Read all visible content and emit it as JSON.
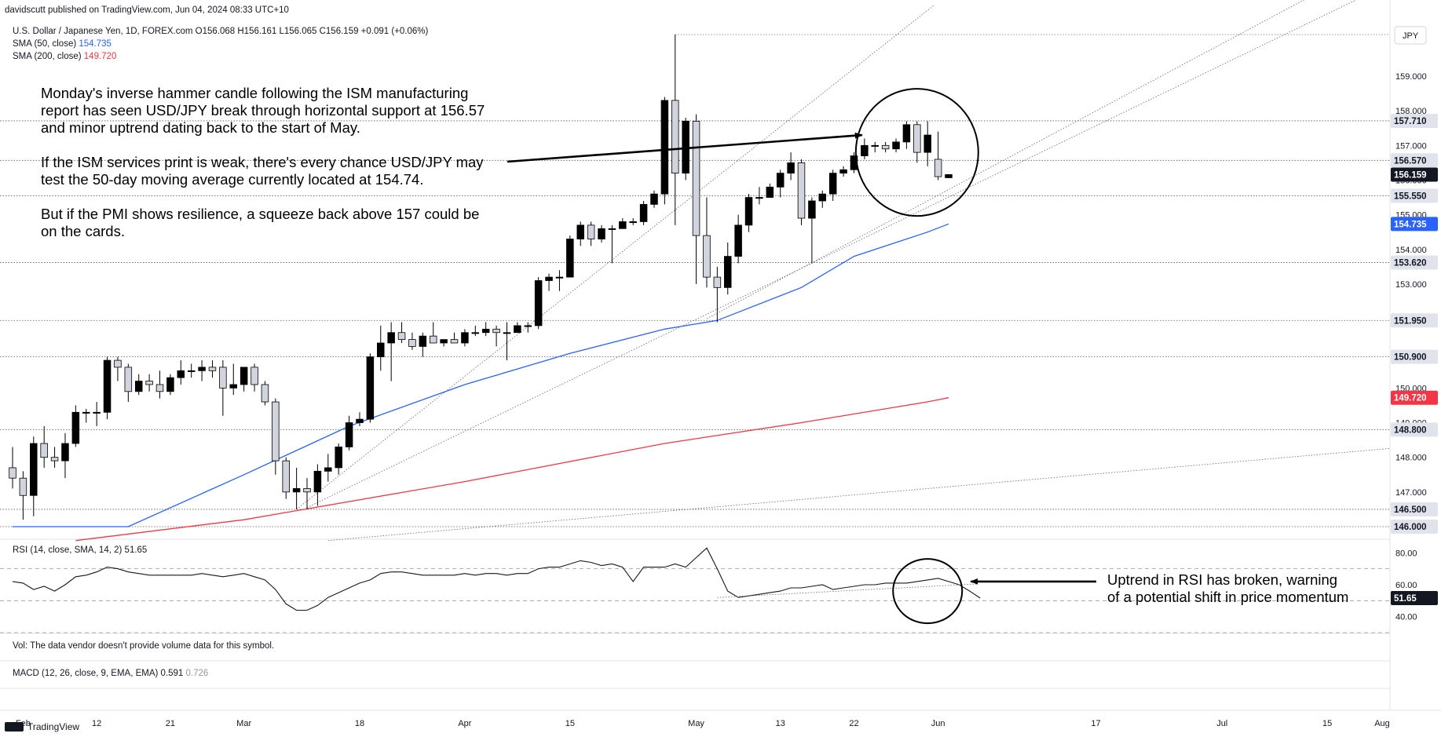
{
  "header": {
    "published": "davidscutt published on TradingView.com, Jun 04, 2024 08:33 UTC+10",
    "symbol_line": "U.S. Dollar / Japanese Yen, 1D, FOREX.com",
    "ohlc": "O156.068 H156.161 L156.065 C156.159 +0.091 (+0.06%)",
    "sma50_label": "SMA (50, close)",
    "sma50_value": "154.735",
    "sma200_label": "SMA (200, close)",
    "sma200_value": "149.720",
    "currency": "JPY"
  },
  "annotation_main": [
    "Monday's inverse hammer candle following the ISM manufacturing",
    "report has seen USD/JPY break through horizontal support at 156.57",
    "and minor uptrend dating back to the start of May.",
    "",
    "If the ISM services print is weak, there's every chance USD/JPY may",
    "test the 50-day moving average currently located at 154.74.",
    "",
    "But if the PMI shows resilience, a squeeze back above 157 could be",
    "on the cards."
  ],
  "annotation_rsi": [
    "Uptrend in RSI has broken, warning",
    "of a potential shift in price momentum"
  ],
  "rsi_header": "RSI (14, close, SMA, 14, 2)",
  "rsi_value": "51.65",
  "vol_text": "Vol: The data vendor doesn't provide volume data for this symbol.",
  "macd_header": "MACD (12, 26, close, 9, EMA, EMA)",
  "macd_value": "0.591",
  "macd_signal": "0.726",
  "footer": {
    "brand": "TradingView"
  },
  "colors": {
    "sma50": "#2962ff",
    "sma200": "#f23645",
    "candle_up": "#ffffff",
    "candle_down": "#000000",
    "tag_dark": "#131722",
    "tag_grey": "#e0e3eb"
  },
  "chart_data": {
    "type": "candlestick",
    "title": "U.S. Dollar / Japanese Yen, 1D, FOREX.com",
    "x_ticks": [
      "Feb",
      "12",
      "21",
      "Mar",
      "18",
      "Apr",
      "15",
      "May",
      "13",
      "22",
      "Jun",
      "17",
      "Jul",
      "15",
      "Aug"
    ],
    "y_ticks": [
      "159.000",
      "158.000",
      "157.000",
      "156.000",
      "155.000",
      "154.000",
      "153.000",
      "152.000",
      "151.000",
      "150.000",
      "149.000",
      "148.000",
      "147.000",
      "146.000"
    ],
    "ylim": [
      145.6,
      159.9
    ],
    "horizontal_levels": [
      "157.710",
      "156.570",
      "155.550",
      "153.620",
      "151.950",
      "150.900",
      "148.800",
      "146.500",
      "146.000"
    ],
    "current_price": "156.159",
    "sma50_last": "154.735",
    "sma200_last": "149.720",
    "candles": [
      {
        "date": "Jan 31",
        "o": 147.7,
        "h": 148.3,
        "l": 147.1,
        "c": 147.4
      },
      {
        "date": "Feb 01",
        "o": 147.4,
        "h": 147.6,
        "l": 146.2,
        "c": 146.9
      },
      {
        "date": "Feb 02",
        "o": 146.9,
        "h": 148.6,
        "l": 146.3,
        "c": 148.4
      },
      {
        "date": "Feb 05",
        "o": 148.4,
        "h": 148.9,
        "l": 147.7,
        "c": 148.0
      },
      {
        "date": "Feb 06",
        "o": 148.0,
        "h": 148.3,
        "l": 147.7,
        "c": 147.9
      },
      {
        "date": "Feb 07",
        "o": 147.9,
        "h": 148.7,
        "l": 147.4,
        "c": 148.4
      },
      {
        "date": "Feb 08",
        "o": 148.4,
        "h": 149.5,
        "l": 148.3,
        "c": 149.3
      },
      {
        "date": "Feb 09",
        "o": 149.3,
        "h": 149.4,
        "l": 149.0,
        "c": 149.3
      },
      {
        "date": "Feb 12",
        "o": 149.3,
        "h": 149.6,
        "l": 148.9,
        "c": 149.3
      },
      {
        "date": "Feb 13",
        "o": 149.3,
        "h": 150.9,
        "l": 149.1,
        "c": 150.8
      },
      {
        "date": "Feb 14",
        "o": 150.8,
        "h": 150.9,
        "l": 150.2,
        "c": 150.6
      },
      {
        "date": "Feb 15",
        "o": 150.6,
        "h": 150.7,
        "l": 149.6,
        "c": 149.9
      },
      {
        "date": "Feb 16",
        "o": 149.9,
        "h": 150.4,
        "l": 149.8,
        "c": 150.2
      },
      {
        "date": "Feb 19",
        "o": 150.2,
        "h": 150.4,
        "l": 149.9,
        "c": 150.1
      },
      {
        "date": "Feb 20",
        "o": 150.1,
        "h": 150.5,
        "l": 149.7,
        "c": 149.9
      },
      {
        "date": "Feb 21",
        "o": 149.9,
        "h": 150.4,
        "l": 149.8,
        "c": 150.3
      },
      {
        "date": "Feb 22",
        "o": 150.3,
        "h": 150.8,
        "l": 150.1,
        "c": 150.5
      },
      {
        "date": "Feb 23",
        "o": 150.5,
        "h": 150.7,
        "l": 150.3,
        "c": 150.5
      },
      {
        "date": "Feb 26",
        "o": 150.5,
        "h": 150.8,
        "l": 150.2,
        "c": 150.6
      },
      {
        "date": "Feb 27",
        "o": 150.6,
        "h": 150.8,
        "l": 150.3,
        "c": 150.5
      },
      {
        "date": "Feb 28",
        "o": 150.6,
        "h": 150.8,
        "l": 149.2,
        "c": 150.0
      },
      {
        "date": "Feb 29",
        "o": 150.0,
        "h": 150.7,
        "l": 149.8,
        "c": 150.1
      },
      {
        "date": "Mar 01",
        "o": 150.1,
        "h": 150.6,
        "l": 149.9,
        "c": 150.6
      },
      {
        "date": "Mar 04",
        "o": 150.6,
        "h": 150.7,
        "l": 149.9,
        "c": 150.1
      },
      {
        "date": "Mar 05",
        "o": 150.1,
        "h": 150.2,
        "l": 149.5,
        "c": 149.6
      },
      {
        "date": "Mar 06",
        "o": 149.6,
        "h": 149.7,
        "l": 147.5,
        "c": 147.9
      },
      {
        "date": "Mar 07",
        "o": 147.9,
        "h": 148.0,
        "l": 146.8,
        "c": 147.0
      },
      {
        "date": "Mar 08",
        "o": 147.0,
        "h": 147.7,
        "l": 146.5,
        "c": 147.1
      },
      {
        "date": "Mar 11",
        "o": 147.1,
        "h": 147.4,
        "l": 146.5,
        "c": 147.0
      },
      {
        "date": "Mar 12",
        "o": 147.0,
        "h": 147.8,
        "l": 146.6,
        "c": 147.6
      },
      {
        "date": "Mar 13",
        "o": 147.6,
        "h": 148.1,
        "l": 147.3,
        "c": 147.7
      },
      {
        "date": "Mar 14",
        "o": 147.7,
        "h": 148.4,
        "l": 147.5,
        "c": 148.3
      },
      {
        "date": "Mar 15",
        "o": 148.3,
        "h": 149.2,
        "l": 148.2,
        "c": 149.0
      },
      {
        "date": "Mar 18",
        "o": 149.0,
        "h": 149.3,
        "l": 148.9,
        "c": 149.1
      },
      {
        "date": "Mar 19",
        "o": 149.1,
        "h": 151.0,
        "l": 149.0,
        "c": 150.9
      },
      {
        "date": "Mar 20",
        "o": 150.9,
        "h": 151.8,
        "l": 150.5,
        "c": 151.3
      },
      {
        "date": "Mar 21",
        "o": 151.3,
        "h": 151.9,
        "l": 150.2,
        "c": 151.6
      },
      {
        "date": "Mar 22",
        "o": 151.6,
        "h": 151.9,
        "l": 151.3,
        "c": 151.4
      },
      {
        "date": "Mar 25",
        "o": 151.4,
        "h": 151.6,
        "l": 151.1,
        "c": 151.2
      },
      {
        "date": "Mar 26",
        "o": 151.2,
        "h": 151.6,
        "l": 150.9,
        "c": 151.5
      },
      {
        "date": "Mar 27",
        "o": 151.5,
        "h": 151.9,
        "l": 151.3,
        "c": 151.3
      },
      {
        "date": "Mar 28",
        "o": 151.3,
        "h": 151.4,
        "l": 151.2,
        "c": 151.4
      },
      {
        "date": "Mar 29",
        "o": 151.4,
        "h": 151.6,
        "l": 151.3,
        "c": 151.3
      },
      {
        "date": "Apr 01",
        "o": 151.3,
        "h": 151.7,
        "l": 151.2,
        "c": 151.6
      },
      {
        "date": "Apr 02",
        "o": 151.6,
        "h": 151.8,
        "l": 151.5,
        "c": 151.6
      },
      {
        "date": "Apr 03",
        "o": 151.6,
        "h": 151.9,
        "l": 151.5,
        "c": 151.7
      },
      {
        "date": "Apr 04",
        "o": 151.7,
        "h": 151.8,
        "l": 151.2,
        "c": 151.6
      },
      {
        "date": "Apr 05",
        "o": 151.6,
        "h": 151.9,
        "l": 150.8,
        "c": 151.6
      },
      {
        "date": "Apr 08",
        "o": 151.6,
        "h": 151.9,
        "l": 151.6,
        "c": 151.8
      },
      {
        "date": "Apr 09",
        "o": 151.8,
        "h": 151.9,
        "l": 151.6,
        "c": 151.8
      },
      {
        "date": "Apr 10",
        "o": 151.8,
        "h": 153.2,
        "l": 151.7,
        "c": 153.1
      },
      {
        "date": "Apr 11",
        "o": 153.1,
        "h": 153.3,
        "l": 152.8,
        "c": 153.2
      },
      {
        "date": "Apr 12",
        "o": 153.2,
        "h": 153.4,
        "l": 152.8,
        "c": 153.2
      },
      {
        "date": "Apr 15",
        "o": 153.2,
        "h": 154.4,
        "l": 153.2,
        "c": 154.3
      },
      {
        "date": "Apr 16",
        "o": 154.3,
        "h": 154.8,
        "l": 154.1,
        "c": 154.7
      },
      {
        "date": "Apr 17",
        "o": 154.7,
        "h": 154.8,
        "l": 154.1,
        "c": 154.3
      },
      {
        "date": "Apr 18",
        "o": 154.3,
        "h": 154.7,
        "l": 154.2,
        "c": 154.6
      },
      {
        "date": "Apr 19",
        "o": 154.6,
        "h": 154.7,
        "l": 153.6,
        "c": 154.6
      },
      {
        "date": "Apr 22",
        "o": 154.6,
        "h": 154.9,
        "l": 154.6,
        "c": 154.8
      },
      {
        "date": "Apr 23",
        "o": 154.8,
        "h": 154.9,
        "l": 154.7,
        "c": 154.8
      },
      {
        "date": "Apr 24",
        "o": 154.8,
        "h": 155.4,
        "l": 154.7,
        "c": 155.3
      },
      {
        "date": "Apr 25",
        "o": 155.3,
        "h": 155.7,
        "l": 155.2,
        "c": 155.6
      },
      {
        "date": "Apr 26",
        "o": 155.6,
        "h": 158.4,
        "l": 155.3,
        "c": 158.3
      },
      {
        "date": "Apr 29",
        "o": 158.3,
        "h": 160.2,
        "l": 154.7,
        "c": 156.2
      },
      {
        "date": "Apr 30",
        "o": 156.2,
        "h": 157.8,
        "l": 156.0,
        "c": 157.7
      },
      {
        "date": "May 01",
        "o": 157.7,
        "h": 157.9,
        "l": 153.0,
        "c": 154.4
      },
      {
        "date": "May 02",
        "o": 154.4,
        "h": 155.5,
        "l": 152.9,
        "c": 153.2
      },
      {
        "date": "May 03",
        "o": 153.2,
        "h": 153.5,
        "l": 151.9,
        "c": 152.9
      },
      {
        "date": "May 06",
        "o": 152.9,
        "h": 154.2,
        "l": 152.7,
        "c": 153.8
      },
      {
        "date": "May 07",
        "o": 153.8,
        "h": 155.0,
        "l": 153.6,
        "c": 154.7
      },
      {
        "date": "May 08",
        "o": 154.7,
        "h": 155.6,
        "l": 154.5,
        "c": 155.5
      },
      {
        "date": "May 09",
        "o": 155.5,
        "h": 155.8,
        "l": 155.3,
        "c": 155.5
      },
      {
        "date": "May 10",
        "o": 155.5,
        "h": 155.9,
        "l": 155.5,
        "c": 155.8
      },
      {
        "date": "May 13",
        "o": 155.8,
        "h": 156.3,
        "l": 155.5,
        "c": 156.2
      },
      {
        "date": "May 14",
        "o": 156.2,
        "h": 156.8,
        "l": 156.0,
        "c": 156.5
      },
      {
        "date": "May 15",
        "o": 156.5,
        "h": 156.6,
        "l": 154.7,
        "c": 154.9
      },
      {
        "date": "May 16",
        "o": 154.9,
        "h": 155.5,
        "l": 153.6,
        "c": 155.4
      },
      {
        "date": "May 17",
        "o": 155.4,
        "h": 155.7,
        "l": 155.2,
        "c": 155.6
      },
      {
        "date": "May 20",
        "o": 155.6,
        "h": 156.3,
        "l": 155.4,
        "c": 156.2
      },
      {
        "date": "May 21",
        "o": 156.2,
        "h": 156.4,
        "l": 156.1,
        "c": 156.3
      },
      {
        "date": "May 22",
        "o": 156.3,
        "h": 156.8,
        "l": 156.2,
        "c": 156.7
      },
      {
        "date": "May 23",
        "o": 156.7,
        "h": 157.2,
        "l": 156.6,
        "c": 157.0
      },
      {
        "date": "May 24",
        "o": 157.0,
        "h": 157.1,
        "l": 156.8,
        "c": 157.0
      },
      {
        "date": "May 27",
        "o": 157.0,
        "h": 157.1,
        "l": 156.8,
        "c": 156.9
      },
      {
        "date": "May 28",
        "o": 156.9,
        "h": 157.2,
        "l": 156.8,
        "c": 157.1
      },
      {
        "date": "May 29",
        "o": 157.1,
        "h": 157.7,
        "l": 156.9,
        "c": 157.6
      },
      {
        "date": "May 30",
        "o": 157.6,
        "h": 157.7,
        "l": 156.5,
        "c": 156.8
      },
      {
        "date": "May 31",
        "o": 156.8,
        "h": 157.7,
        "l": 156.4,
        "c": 157.3
      },
      {
        "date": "Jun 03",
        "o": 156.6,
        "h": 157.4,
        "l": 156.0,
        "c": 156.1
      },
      {
        "date": "Jun 04",
        "o": 156.068,
        "h": 156.161,
        "l": 156.065,
        "c": 156.159
      }
    ],
    "sma50": {
      "dates": [
        "Jan 31",
        "Feb 15",
        "Mar 01",
        "Mar 15",
        "Apr 01",
        "Apr 15",
        "Apr 26",
        "May 03",
        "May 15",
        "May 22",
        "May 31",
        "Jun 04"
      ],
      "values": [
        146.0,
        146.0,
        147.5,
        148.9,
        150.1,
        151.0,
        151.7,
        151.95,
        152.9,
        153.8,
        154.5,
        154.735
      ]
    },
    "sma200": {
      "dates": [
        "Feb 08",
        "Mar 01",
        "Apr 01",
        "Apr 26",
        "May 15",
        "May 31",
        "Jun 04"
      ],
      "values": [
        145.6,
        146.2,
        147.3,
        148.4,
        149.0,
        149.6,
        149.72
      ]
    },
    "rsi": {
      "ticks": [
        "80.00",
        "60.00",
        "40.00"
      ],
      "ylim": [
        30,
        88
      ],
      "values": [
        62,
        61,
        57,
        59,
        56,
        60,
        65,
        66,
        68,
        71,
        70,
        68,
        67,
        66,
        66,
        66,
        66,
        66,
        67,
        66,
        65,
        66,
        67,
        65,
        63,
        57,
        48,
        44,
        44,
        47,
        52,
        55,
        58,
        61,
        63,
        67,
        68,
        68,
        67,
        66,
        66,
        66,
        66,
        67,
        66,
        67,
        67,
        66,
        67,
        67,
        70,
        71,
        71,
        73,
        75,
        74,
        72,
        73,
        71,
        62,
        71,
        71,
        71,
        73,
        71,
        77,
        83,
        70,
        56,
        52,
        53,
        54,
        55,
        56,
        58,
        58,
        59,
        60,
        57,
        58,
        59,
        60,
        60,
        61,
        61,
        61,
        62,
        63,
        64,
        62,
        60,
        56,
        51.65
      ]
    }
  }
}
